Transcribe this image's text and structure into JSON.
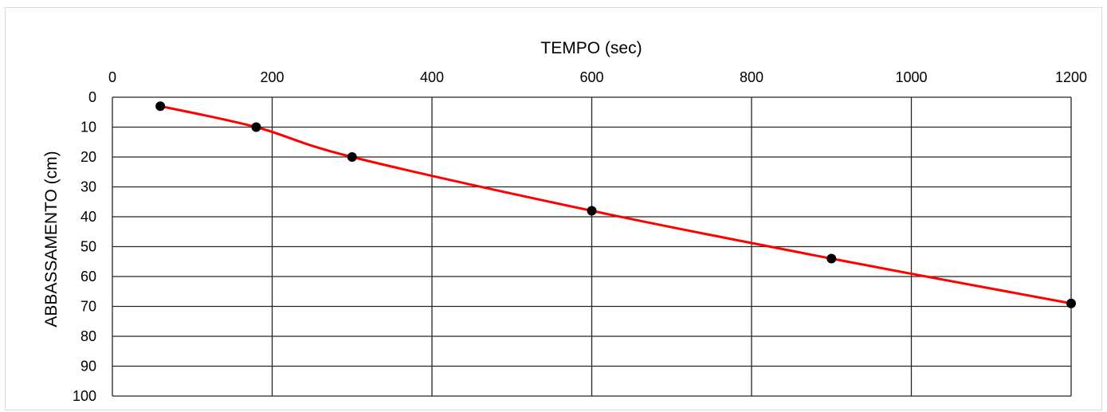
{
  "chart_data": {
    "type": "scatter",
    "xlabel": "TEMPO (sec)",
    "ylabel": "ABBASSAMENTO (cm)",
    "x_axis_position": "top",
    "y_axis_inverted": true,
    "xlim": [
      0,
      1200
    ],
    "ylim": [
      0,
      100
    ],
    "x_ticks": [
      0,
      200,
      400,
      600,
      800,
      1000,
      1200
    ],
    "y_ticks": [
      0,
      10,
      20,
      30,
      40,
      50,
      60,
      70,
      80,
      90,
      100
    ],
    "grid": true,
    "legend": "none",
    "line_style": "smoothed",
    "series": [
      {
        "x": [
          60,
          180,
          300,
          600,
          900,
          1200
        ],
        "y": [
          3,
          10,
          20,
          38,
          54,
          69
        ]
      }
    ],
    "colors": {
      "line": "#ff0000",
      "marker": "#000000",
      "grid": "#262626"
    }
  }
}
